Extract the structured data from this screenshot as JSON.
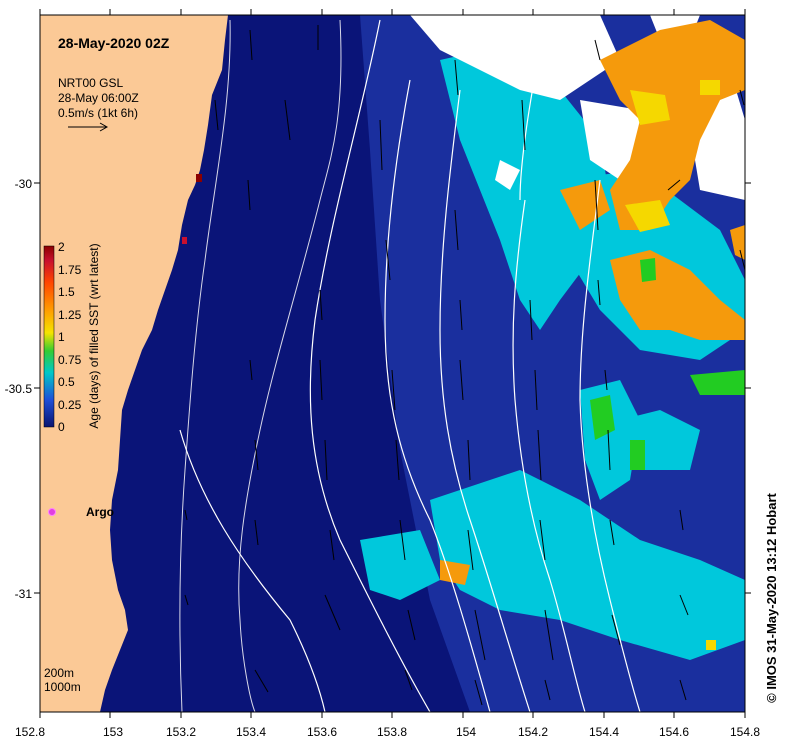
{
  "header": {
    "title": "28-May-2020 02Z"
  },
  "current_legend": {
    "line1": "NRT00 GSL",
    "line2": "28-May 06:00Z",
    "line3": "0.5m/s (1kt 6h)"
  },
  "colorbar": {
    "label": "Age (days) of filled SST (wrt latest)",
    "ticks": [
      "2",
      "1.75",
      "1.5",
      "1.25",
      "1",
      "0.75",
      "0.5",
      "0.25",
      "0"
    ],
    "colors": [
      "#8b0000",
      "#c8102e",
      "#ff4500",
      "#ff9a00",
      "#f5e400",
      "#33cc33",
      "#00c8c8",
      "#1f4fd8",
      "#0a1470"
    ]
  },
  "marker": {
    "label": "Argo",
    "color": "#e040e0"
  },
  "contour_legend": {
    "line1": "200m",
    "line2": "1000m"
  },
  "credit": "© IMOS 31-May-2020 13:12 Hobart",
  "axes": {
    "x_ticks": [
      "152.8",
      "153",
      "153.2",
      "153.4",
      "153.6",
      "153.8",
      "154",
      "154.2",
      "154.4",
      "154.6",
      "154.8"
    ],
    "y_ticks": [
      "-30",
      "-30.5",
      "-31"
    ]
  },
  "colors": {
    "land": "#fbc996",
    "ocean_deep": "#0a1478",
    "ocean_mid": "#1f3fb8",
    "cyan": "#00c8dc",
    "orange": "#f59a0c",
    "yellow": "#f5d800",
    "green": "#22cc22",
    "white": "#ffffff"
  }
}
